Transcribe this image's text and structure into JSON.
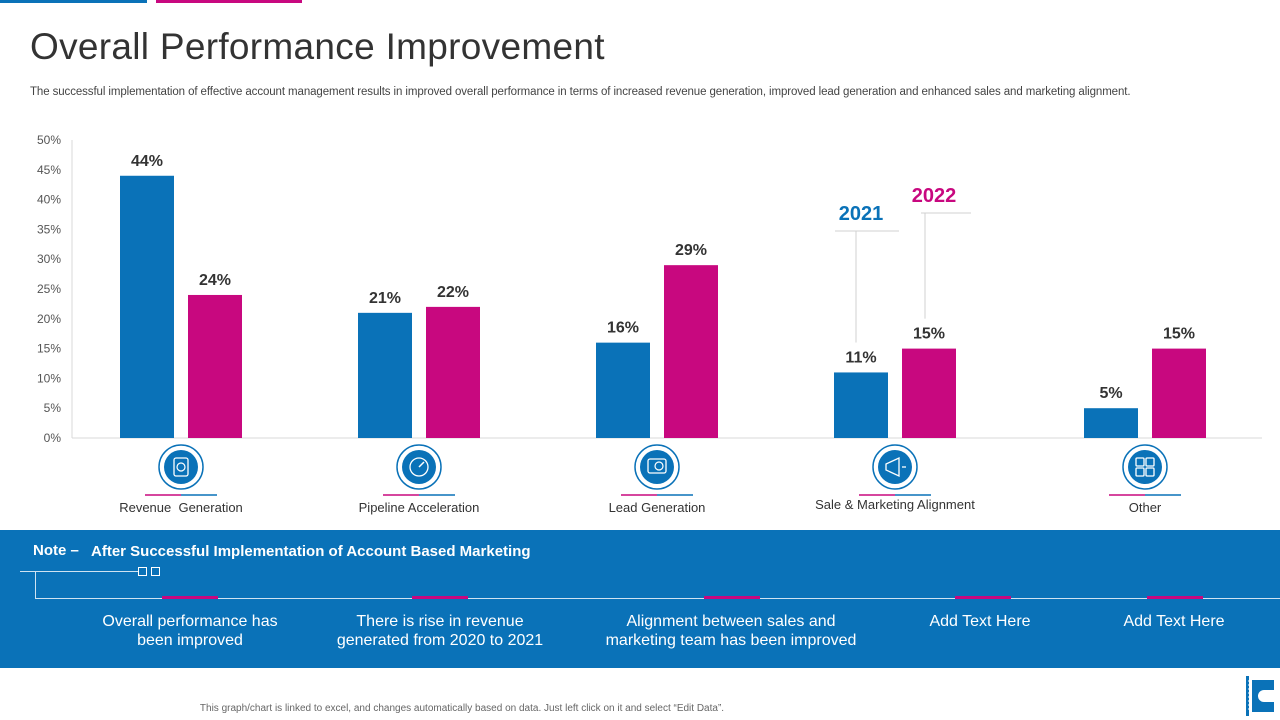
{
  "header": {
    "title": "Overall Performance Improvement",
    "subtitle": "The successful implementation of effective account management results in improved overall performance in terms of increased revenue generation, improved lead generation and enhanced sales and marketing alignment."
  },
  "colors": {
    "blue": "#0a72b8",
    "pink": "#c8087f"
  },
  "chart_data": {
    "type": "bar",
    "title": "",
    "categories": [
      "Revenue  Generation",
      "Pipeline Acceleration",
      "Lead Generation",
      "Sale & Marketing Alignment",
      "Other"
    ],
    "category_icons": [
      "revenue-icon",
      "speedometer-icon",
      "lead-magnet-icon",
      "megaphone-icon",
      "grid-icon"
    ],
    "series": [
      {
        "name": "2021",
        "values": [
          44,
          21,
          16,
          11,
          5
        ],
        "color": "#0a72b8"
      },
      {
        "name": "2022",
        "values": [
          24,
          22,
          29,
          15,
          15
        ],
        "color": "#c8087f"
      }
    ],
    "value_suffix": "%",
    "ylim": [
      0,
      50
    ],
    "yticks": [
      0,
      5,
      10,
      15,
      20,
      25,
      30,
      35,
      40,
      45,
      50
    ],
    "ytick_labels": [
      "0%",
      "5%",
      "10%",
      "15%",
      "20%",
      "25%",
      "30%",
      "35%",
      "40%",
      "45%",
      "50%"
    ],
    "xlabel": "",
    "ylabel": "",
    "legend_position": "callout-over-4th-group"
  },
  "note": {
    "label": "Note –",
    "text": "After  Successful Implementation  of Account Based Marketing",
    "items": [
      "Overall performance has been improved",
      "There is rise in revenue generated from 2020 to 2021",
      "Alignment between sales and marketing team has been improved",
      "Add Text Here",
      "Add Text Here"
    ]
  },
  "footer": {
    "text": "This graph/chart is linked to excel, and changes automatically based on data. Just left click on it and select “Edit Data”."
  }
}
